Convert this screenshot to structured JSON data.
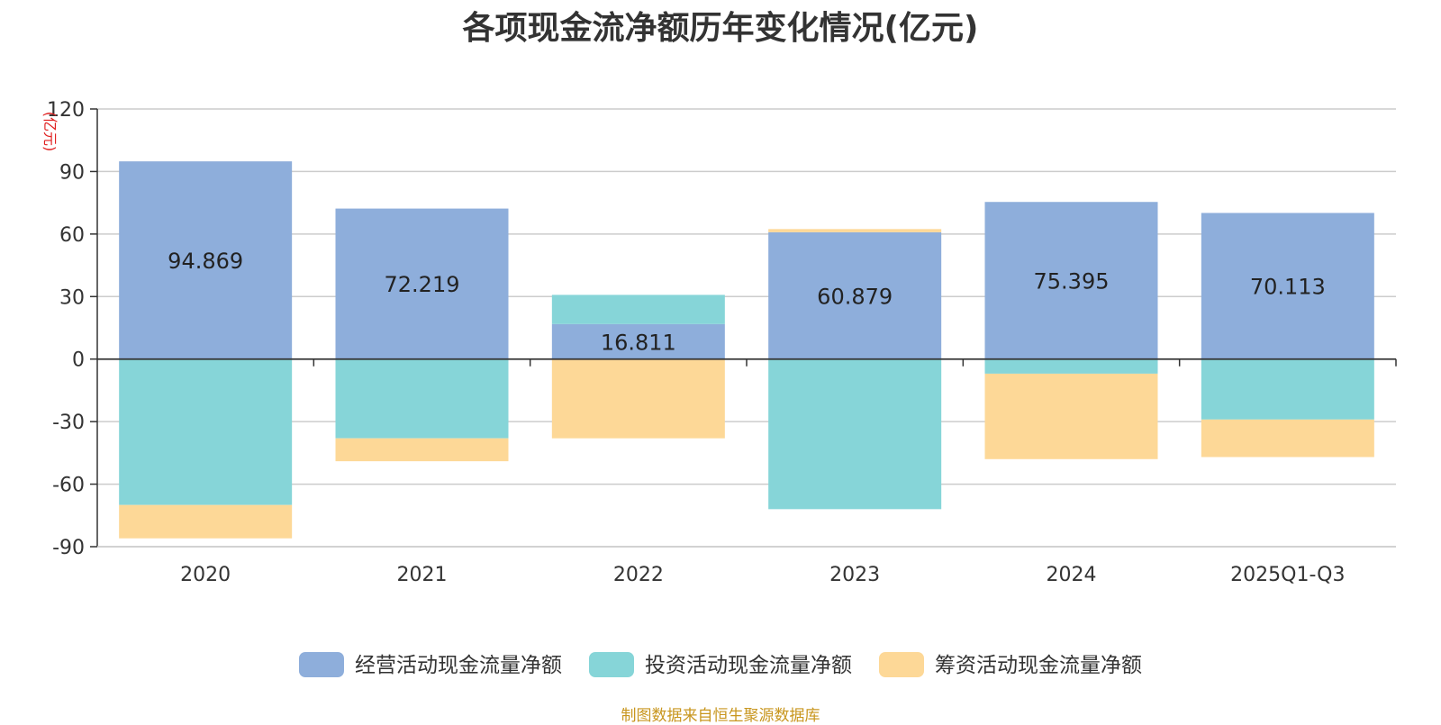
{
  "chart_data": {
    "type": "bar",
    "stacked": true,
    "title": "各项现金流净额历年变化情况(亿元)",
    "ylabel": "(亿元)",
    "categories": [
      "2020",
      "2021",
      "2022",
      "2023",
      "2024",
      "2025Q1-Q3"
    ],
    "ylim": [
      -90,
      120
    ],
    "yticks": [
      120,
      90,
      60,
      30,
      0,
      -30,
      -60,
      -90
    ],
    "grid": true,
    "legend_position": "bottom",
    "series": [
      {
        "name": "经营活动现金流量净额",
        "color": "#8eaedb",
        "values": [
          94.869,
          72.219,
          16.811,
          60.879,
          75.395,
          70.113
        ],
        "show_labels": true
      },
      {
        "name": "投资活动现金流量净额",
        "color": "#86d5d8",
        "values": [
          -70,
          -38,
          14,
          -72,
          -7,
          -29
        ],
        "show_labels": false
      },
      {
        "name": "筹资活动现金流量净额",
        "color": "#fdd897",
        "values": [
          -16,
          -11,
          -38,
          1.5,
          -41,
          -18
        ],
        "show_labels": false
      }
    ],
    "data_labels": [
      "94.869",
      "72.219",
      "16.811",
      "60.879",
      "75.395",
      "70.113"
    ]
  },
  "source_note": "制图数据来自恒生聚源数据库"
}
